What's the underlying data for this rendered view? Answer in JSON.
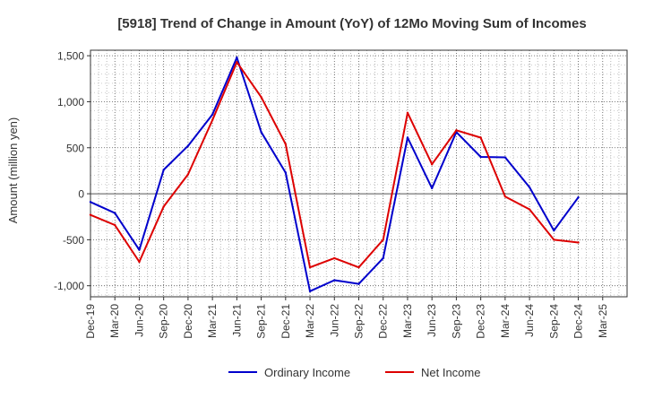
{
  "chart_data": {
    "type": "line",
    "title": "[5918]  Trend of Change in Amount (YoY) of 12Mo Moving Sum of Incomes",
    "ylabel": "Amount (million yen)",
    "xlabel": "",
    "ylim": [
      -1120,
      1560
    ],
    "yticks": [
      1500,
      1000,
      500,
      0,
      -500,
      -1000
    ],
    "ytick_labels": [
      "1,500",
      "1,000",
      "500",
      "0",
      "-500",
      "-1,000"
    ],
    "grid": true,
    "legend_position": "bottom-center",
    "categories": [
      "Dec-19",
      "Mar-20",
      "Jun-20",
      "Sep-20",
      "Dec-20",
      "Mar-21",
      "Jun-21",
      "Sep-21",
      "Dec-21",
      "Mar-22",
      "Jun-22",
      "Sep-22",
      "Dec-22",
      "Mar-23",
      "Jun-23",
      "Sep-23",
      "Dec-23",
      "Mar-24",
      "Jun-24",
      "Sep-24",
      "Dec-24",
      "Mar-25"
    ],
    "series": [
      {
        "name": "Ordinary Income",
        "color": "#0000cc",
        "values": [
          -90,
          -210,
          -610,
          260,
          520,
          860,
          1480,
          670,
          230,
          -1060,
          -940,
          -980,
          -700,
          610,
          60,
          670,
          400,
          395,
          70,
          -400,
          -40,
          null
        ]
      },
      {
        "name": "Net Income",
        "color": "#dd0000",
        "values": [
          -230,
          -340,
          -740,
          -140,
          210,
          800,
          1430,
          1050,
          540,
          -800,
          -700,
          -800,
          -500,
          880,
          320,
          690,
          610,
          -30,
          -170,
          -500,
          -530,
          null
        ]
      }
    ]
  }
}
